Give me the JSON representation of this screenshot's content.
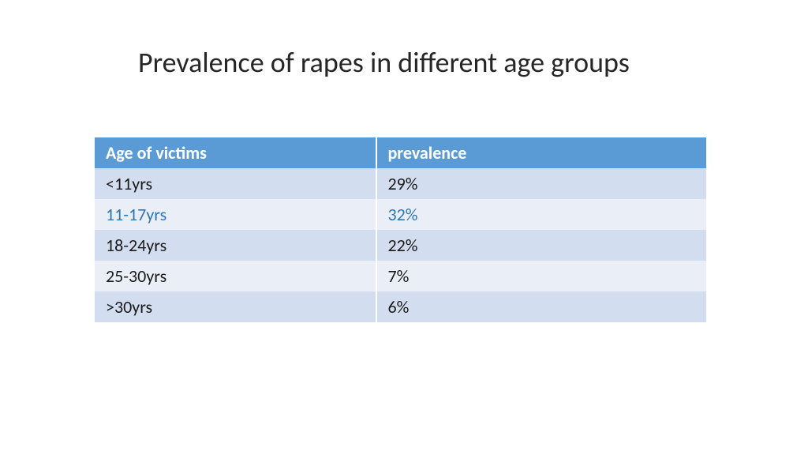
{
  "title": "Prevalence of rapes in different age groups",
  "table": {
    "type": "table",
    "header_bg": "#5b9bd5",
    "header_text_color": "#ffffff",
    "row_bg_odd": "#d2deef",
    "row_bg_even": "#eaeff7",
    "highlight_color": "#2e75b6",
    "text_color": "#1a1a1a",
    "font_size": 22,
    "columns": [
      "Age of victims",
      "prevalence"
    ],
    "rows": [
      {
        "age": "<11yrs",
        "prevalence": "29%",
        "highlight": false
      },
      {
        "age": "11-17yrs",
        "prevalence": "32%",
        "highlight": true
      },
      {
        "age": "18-24yrs",
        "prevalence": "22%",
        "highlight": false
      },
      {
        "age": "25-30yrs",
        "prevalence": "7%",
        "highlight": false
      },
      {
        "age": ">30yrs",
        "prevalence": "6%",
        "highlight": false
      }
    ]
  }
}
